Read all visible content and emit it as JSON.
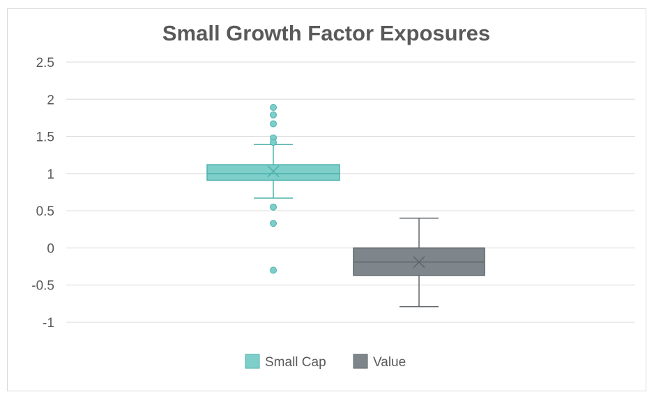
{
  "chart_data": {
    "type": "boxplot",
    "title": "Small Growth Factor Exposures",
    "xlabel": "",
    "ylabel": "",
    "ylim": [
      -1,
      2.5
    ],
    "yticks": [
      2.5,
      2,
      1.5,
      1,
      0.5,
      0,
      -0.5,
      -1
    ],
    "ytick_labels": [
      "2.5",
      "2",
      "1.5",
      "1",
      "0.5",
      "0",
      "-0.5",
      "-1"
    ],
    "grid": true,
    "legend_position": "bottom",
    "series": [
      {
        "name": "Small Cap",
        "color": "#7ececa",
        "stroke": "#4fb2ac",
        "whisker_low": 0.67,
        "q1": 0.91,
        "median": 1.0,
        "q3": 1.12,
        "whisker_high": 1.39,
        "mean": 1.03,
        "outliers": [
          1.89,
          1.79,
          1.67,
          1.48,
          1.42,
          0.55,
          0.33,
          -0.3
        ]
      },
      {
        "name": "Value",
        "color": "#7f868b",
        "stroke": "#5f6569",
        "whisker_low": -0.79,
        "q1": -0.37,
        "median": -0.19,
        "q3": 0.0,
        "whisker_high": 0.4,
        "mean": -0.19,
        "outliers": []
      }
    ]
  }
}
